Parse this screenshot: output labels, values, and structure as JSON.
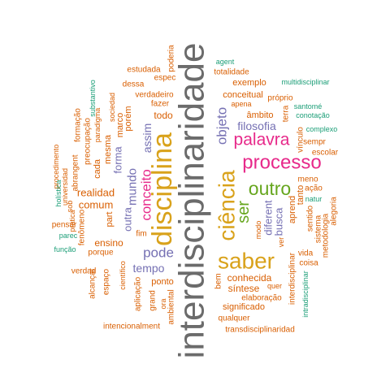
{
  "colors": {
    "gray": "#6b6b6b",
    "gold": "#d9a21b",
    "pink": "#e7298a",
    "green": "#66a61e",
    "purple": "#7570b3",
    "orange": "#d95f02",
    "teal": "#1b9e77"
  },
  "words": [
    {
      "text": "interdisciplinaridade",
      "color": "gray"
    },
    {
      "text": "disciplina",
      "color": "gold"
    },
    {
      "text": "ciência",
      "color": "gold"
    },
    {
      "text": "saber",
      "color": "gold"
    },
    {
      "text": "processo",
      "color": "pink"
    },
    {
      "text": "palavra",
      "color": "pink"
    },
    {
      "text": "outro",
      "color": "green"
    },
    {
      "text": "ser",
      "color": "green"
    },
    {
      "text": "conceito",
      "color": "pink"
    },
    {
      "text": "objeto",
      "color": "purple"
    },
    {
      "text": "pode",
      "color": "purple"
    },
    {
      "text": "mundo",
      "color": "purple"
    },
    {
      "text": "tempo",
      "color": "purple"
    },
    {
      "text": "filosofia",
      "color": "purple"
    },
    {
      "text": "assim",
      "color": "purple"
    },
    {
      "text": "outra",
      "color": "purple"
    },
    {
      "text": "forma",
      "color": "purple"
    },
    {
      "text": "diferent",
      "color": "purple"
    },
    {
      "text": "busca",
      "color": "purple"
    },
    {
      "text": "realidad",
      "color": "orange"
    },
    {
      "text": "comum",
      "color": "orange"
    },
    {
      "text": "ensino",
      "color": "orange"
    },
    {
      "text": "porém",
      "color": "orange"
    },
    {
      "text": "todo",
      "color": "orange"
    },
    {
      "text": "conhecida",
      "color": "orange"
    },
    {
      "text": "síntese",
      "color": "orange"
    },
    {
      "text": "significado",
      "color": "orange"
    },
    {
      "text": "exemplo",
      "color": "orange"
    },
    {
      "text": "âmbito",
      "color": "orange"
    },
    {
      "text": "conceitual",
      "color": "orange"
    },
    {
      "text": "aprend",
      "color": "orange"
    },
    {
      "text": "sentido",
      "color": "orange"
    },
    {
      "text": "vínculo",
      "color": "orange"
    },
    {
      "text": "tanto",
      "color": "orange"
    },
    {
      "text": "ponto",
      "color": "orange"
    },
    {
      "text": "part",
      "color": "orange"
    },
    {
      "text": "cada",
      "color": "orange"
    },
    {
      "text": "mesma",
      "color": "orange"
    },
    {
      "text": "marco",
      "color": "orange"
    },
    {
      "text": "fazer",
      "color": "orange"
    },
    {
      "text": "verdadeiro",
      "color": "orange"
    },
    {
      "text": "dessa",
      "color": "orange"
    },
    {
      "text": "estudada",
      "color": "orange"
    },
    {
      "text": "espec",
      "color": "orange"
    },
    {
      "text": "poderia",
      "color": "orange"
    },
    {
      "text": "totalidade",
      "color": "orange"
    },
    {
      "text": "apena",
      "color": "orange"
    },
    {
      "text": "próprio",
      "color": "orange"
    },
    {
      "text": "terra",
      "color": "orange"
    },
    {
      "text": "sempr",
      "color": "orange"
    },
    {
      "text": "escolar",
      "color": "orange"
    },
    {
      "text": "meno",
      "color": "orange"
    },
    {
      "text": "ação",
      "color": "orange"
    },
    {
      "text": "alegoria",
      "color": "orange"
    },
    {
      "text": "sistema",
      "color": "orange"
    },
    {
      "text": "metodologia",
      "color": "orange"
    },
    {
      "text": "vida",
      "color": "orange"
    },
    {
      "text": "coisa",
      "color": "orange"
    },
    {
      "text": "ver",
      "color": "orange"
    },
    {
      "text": "modo",
      "color": "orange"
    },
    {
      "text": "quer",
      "color": "orange"
    },
    {
      "text": "elaboração",
      "color": "orange"
    },
    {
      "text": "qualquer",
      "color": "orange"
    },
    {
      "text": "transdisciplinaridad",
      "color": "orange"
    },
    {
      "text": "intencionalment",
      "color": "orange"
    },
    {
      "text": "ambiental",
      "color": "orange"
    },
    {
      "text": "ora",
      "color": "orange"
    },
    {
      "text": "grand",
      "color": "orange"
    },
    {
      "text": "aplicação",
      "color": "orange"
    },
    {
      "text": "científico",
      "color": "orange"
    },
    {
      "text": "espaço",
      "color": "orange"
    },
    {
      "text": "alcançar",
      "color": "orange"
    },
    {
      "text": "verdad",
      "color": "orange"
    },
    {
      "text": "porque",
      "color": "orange"
    },
    {
      "text": "fim",
      "color": "orange"
    },
    {
      "text": "bem",
      "color": "orange"
    },
    {
      "text": "pensar",
      "color": "orange"
    },
    {
      "text": "prática",
      "color": "orange"
    },
    {
      "text": "fenômeno",
      "color": "orange"
    },
    {
      "text": "sob",
      "color": "orange"
    },
    {
      "text": "abrangent",
      "color": "orange"
    },
    {
      "text": "formação",
      "color": "orange"
    },
    {
      "text": "preocupação",
      "color": "orange"
    },
    {
      "text": "procedimento",
      "color": "orange"
    },
    {
      "text": "universidad",
      "color": "orange"
    },
    {
      "text": "paradigma",
      "color": "orange"
    },
    {
      "text": "sociedad",
      "color": "orange"
    },
    {
      "text": "interdisciplinar",
      "color": "orange"
    },
    {
      "text": "substantivo",
      "color": "teal"
    },
    {
      "text": "holística",
      "color": "teal"
    },
    {
      "text": "parec",
      "color": "teal"
    },
    {
      "text": "função",
      "color": "teal"
    },
    {
      "text": "agent",
      "color": "teal"
    },
    {
      "text": "multidisciplinar",
      "color": "teal"
    },
    {
      "text": "santomé",
      "color": "teal"
    },
    {
      "text": "conotação",
      "color": "teal"
    },
    {
      "text": "complexo",
      "color": "teal"
    },
    {
      "text": "natur",
      "color": "teal"
    },
    {
      "text": "intradisciplinar",
      "color": "teal"
    }
  ]
}
